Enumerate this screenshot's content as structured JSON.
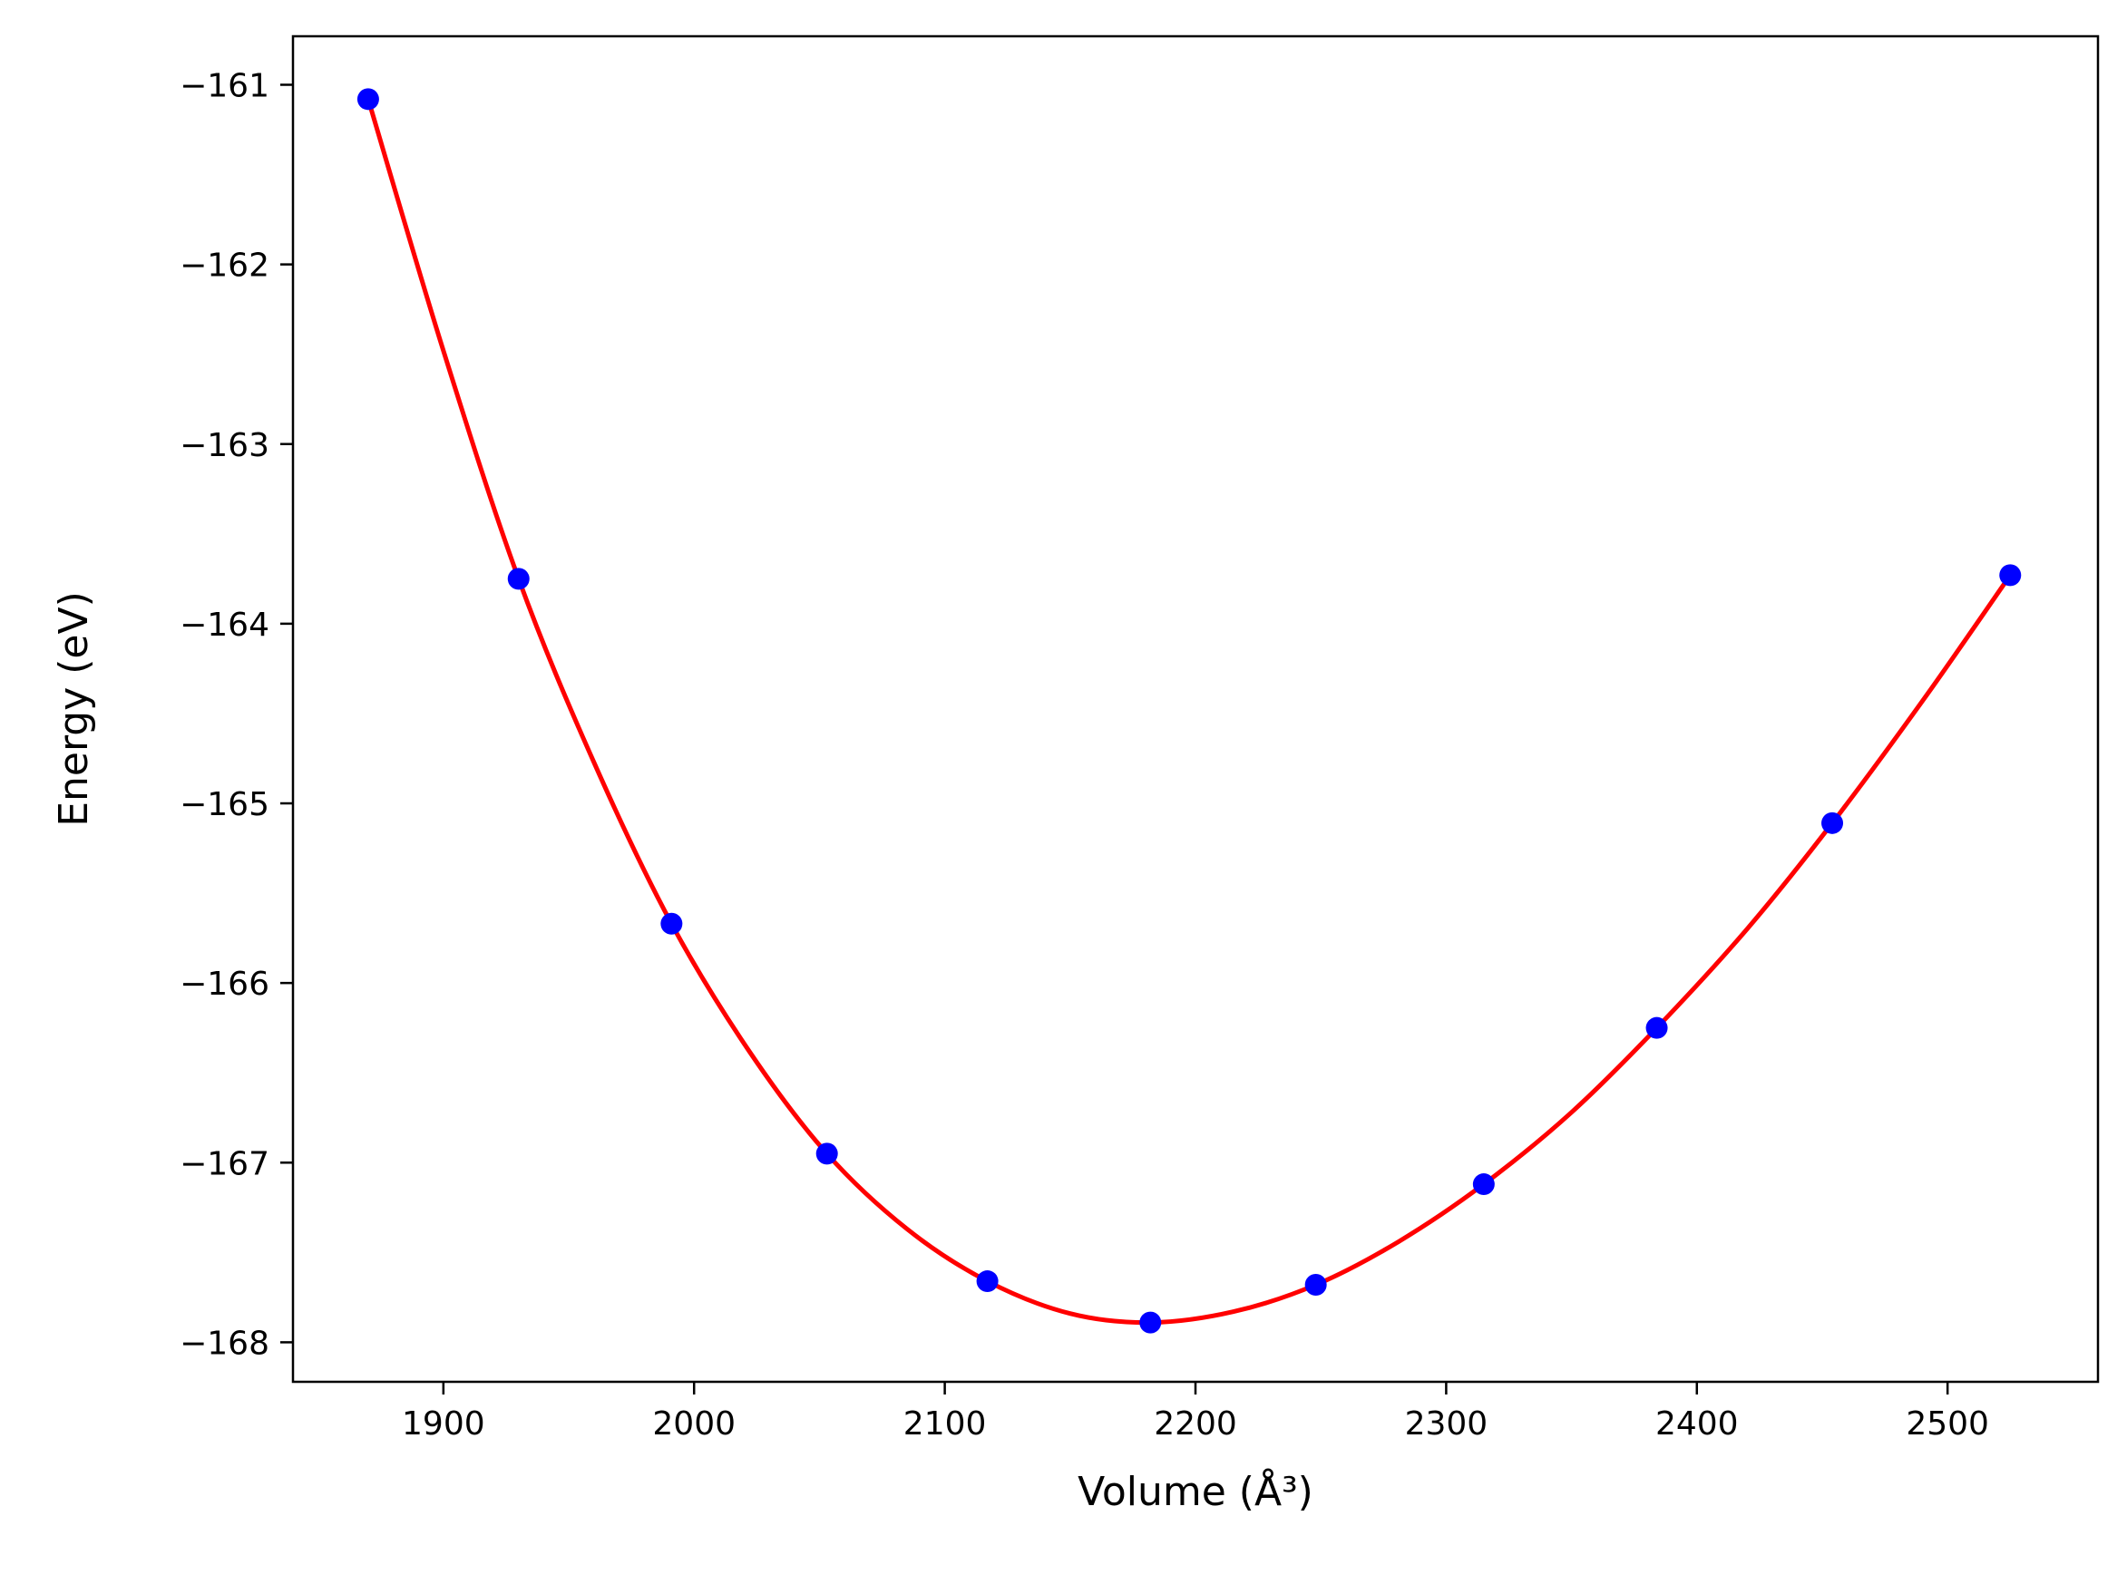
{
  "chart_data": {
    "type": "line",
    "title": "",
    "xlabel": "Volume (Å³)",
    "ylabel": "Energy (eV)",
    "xlim": [
      1840,
      2560
    ],
    "ylim": [
      -168.22,
      -160.73
    ],
    "x_ticks": [
      1900,
      2000,
      2100,
      2200,
      2300,
      2400,
      2500
    ],
    "y_ticks": [
      -161,
      -162,
      -163,
      -164,
      -165,
      -166,
      -167,
      -168
    ],
    "x_tick_labels": [
      "1900",
      "2000",
      "2100",
      "2200",
      "2300",
      "2400",
      "2500"
    ],
    "y_tick_labels": [
      "−161",
      "−162",
      "−163",
      "−164",
      "−165",
      "−166",
      "−167",
      "−168"
    ],
    "grid": false,
    "series": [
      {
        "kind": "points",
        "color": "#0000ff",
        "x": [
          1870,
          1930,
          1991,
          2053,
          2117,
          2182,
          2248,
          2315,
          2384,
          2454,
          2525
        ],
        "y": [
          -161.08,
          -163.75,
          -165.67,
          -166.95,
          -167.66,
          -167.89,
          -167.68,
          -167.12,
          -166.25,
          -165.11,
          -163.73
        ]
      },
      {
        "kind": "fit-curve",
        "color": "#ff0000",
        "x": [
          1870,
          1900,
          1930,
          1960,
          1991,
          2022,
          2053,
          2085,
          2117,
          2150,
          2182,
          2215,
          2248,
          2281,
          2315,
          2350,
          2384,
          2420,
          2454,
          2490,
          2525
        ],
        "y": [
          -161.08,
          -162.48,
          -163.75,
          -164.77,
          -165.67,
          -166.38,
          -166.95,
          -167.37,
          -167.66,
          -167.84,
          -167.89,
          -167.83,
          -167.68,
          -167.44,
          -167.12,
          -166.72,
          -166.25,
          -165.7,
          -165.11,
          -164.43,
          -163.73
        ]
      }
    ]
  }
}
